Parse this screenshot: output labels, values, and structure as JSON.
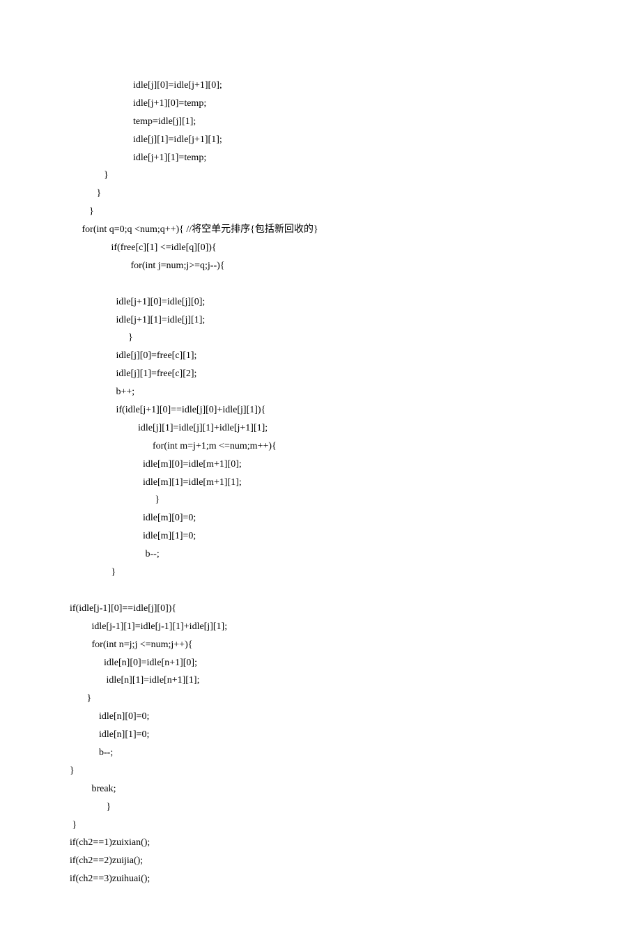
{
  "font_family": "Times New Roman, serif",
  "font_size_pt": 10.5,
  "text_color": "#000000",
  "background_color": "#ffffff",
  "line_height": 1.85,
  "lines": [
    "                          idle[j][0]=idle[j+1][0];",
    "                          idle[j+1][0]=temp;",
    "                          temp=idle[j][1];",
    "                          idle[j][1]=idle[j+1][1];",
    "                          idle[j+1][1]=temp;",
    "              }",
    "           }",
    "        }",
    "     for(int q=0;q <num;q++){ //将空单元排序{包括新回收的}",
    "                 if(free[c][1] <=idle[q][0]){",
    "                         for(int j=num;j>=q;j--){",
    "",
    "                   idle[j+1][0]=idle[j][0];",
    "                   idle[j+1][1]=idle[j][1];",
    "                        }",
    "                   idle[j][0]=free[c][1];",
    "                   idle[j][1]=free[c][2];",
    "                   b++;",
    "                   if(idle[j+1][0]==idle[j][0]+idle[j][1]){",
    "                            idle[j][1]=idle[j][1]+idle[j+1][1];",
    "                                  for(int m=j+1;m <=num;m++){",
    "                              idle[m][0]=idle[m+1][0];",
    "                              idle[m][1]=idle[m+1][1];",
    "                                   }",
    "                              idle[m][0]=0;",
    "                              idle[m][1]=0;",
    "                               b--;",
    "                 }",
    "",
    "if(idle[j-1][0]==idle[j][0]){",
    "         idle[j-1][1]=idle[j-1][1]+idle[j][1];",
    "         for(int n=j;j <=num;j++){",
    "              idle[n][0]=idle[n+1][0];",
    "               idle[n][1]=idle[n+1][1];",
    "       }",
    "            idle[n][0]=0;",
    "            idle[n][1]=0;",
    "            b--;",
    "}",
    "         break;",
    "               }",
    " }",
    "if(ch2==1)zuixian();",
    "if(ch2==2)zuijia();",
    "if(ch2==3)zuihuai();"
  ]
}
